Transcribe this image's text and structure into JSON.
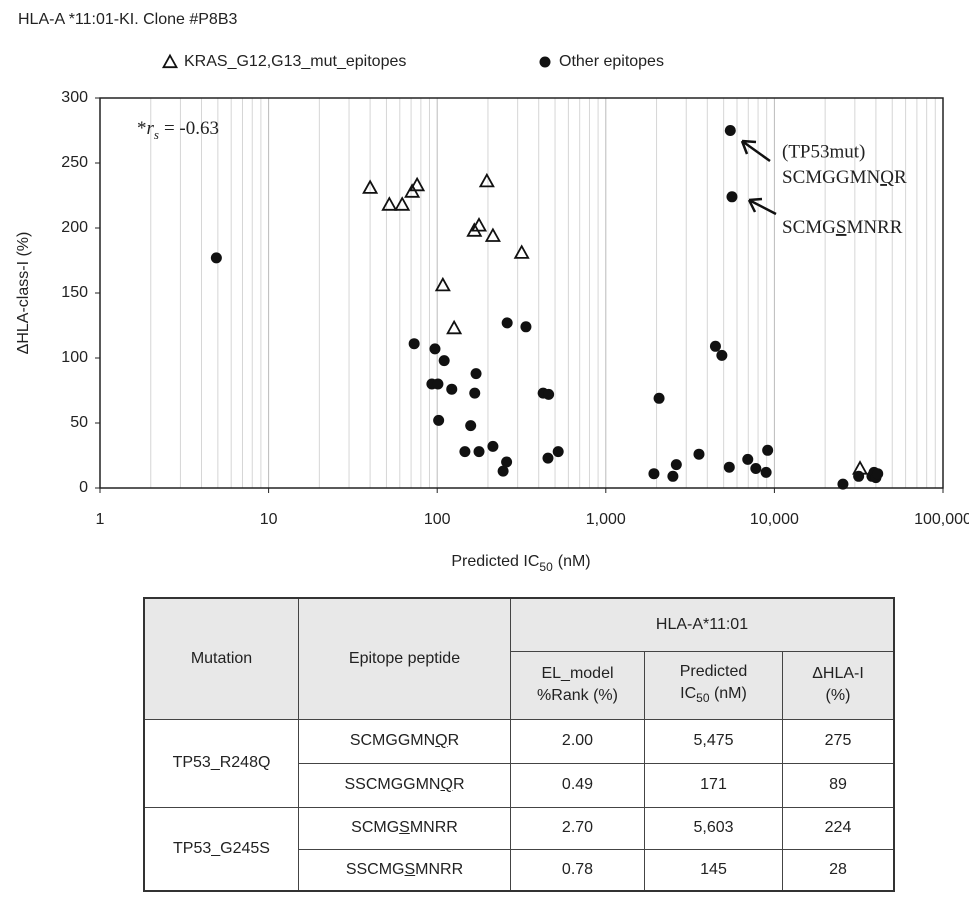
{
  "chart_data": {
    "type": "scatter",
    "title": "HLA-A *11:01-KI. Clone #P8B3",
    "x_label": {
      "main": "Predicted IC",
      "sub": "50",
      "rest": "(nM)"
    },
    "y_label": "ΔHLA-class-I (%)",
    "xlim": [
      1,
      100000
    ],
    "ylim": [
      0,
      300
    ],
    "xlog": true,
    "grid": true,
    "minor_grid": true,
    "legend": "top",
    "xticks": [
      1,
      10,
      100,
      {
        "value": 1000,
        "label": "1,000"
      },
      {
        "value": 10000,
        "label": "10,000"
      },
      {
        "value": 100000,
        "label": "100,000"
      }
    ],
    "yticks": [
      0,
      50,
      100,
      150,
      200,
      250,
      300
    ],
    "annotation_rs": {
      "prefix": "*",
      "symbol": "r",
      "sub": "s",
      "text": "= -0.63"
    },
    "annotation_tp53": "(TP53mut)",
    "annotation_peptide1": {
      "before": "SCMGGMN",
      "mut": "Q",
      "after": "R"
    },
    "annotation_peptide2": {
      "before": "SCMG",
      "mut": "S",
      "after": "MNRR"
    },
    "series": [
      {
        "name": "KRAS_G12,G13_mut_epitopes",
        "marker": "triangle",
        "color": "#111111",
        "x": [
          40,
          52,
          62,
          71,
          76,
          197,
          177,
          166,
          214,
          317,
          108,
          126,
          32200
        ],
        "values": [
          231,
          218,
          218,
          228,
          233,
          236,
          202,
          198,
          194,
          181,
          156,
          123,
          15
        ]
      },
      {
        "name": "Other epitopes",
        "marker": "circle",
        "color": "#111111",
        "x": [
          4.9,
          73,
          97,
          110,
          93,
          101,
          122,
          170,
          167,
          102,
          158,
          146,
          177,
          214,
          246,
          258,
          260,
          336,
          425,
          458,
          454,
          522,
          1930,
          2070,
          2500,
          2620,
          3570,
          4470,
          4880,
          5475,
          5603,
          5400,
          6950,
          7760,
          8930,
          9120,
          25500,
          31600,
          37900,
          39000,
          40000,
          41000
        ],
        "values": [
          177,
          111,
          107,
          98,
          80,
          80,
          76,
          88,
          73,
          52,
          48,
          28,
          28,
          32,
          13,
          20,
          127,
          124,
          73,
          72,
          23,
          28,
          11,
          69,
          9,
          18,
          26,
          109,
          102,
          275,
          224,
          16,
          22,
          15,
          12,
          29,
          3,
          9,
          9,
          12,
          8,
          11
        ]
      }
    ]
  },
  "table": {
    "header": {
      "mutation": "Mutation",
      "peptide": "Epitope peptide",
      "group": "HLA-A*11:01",
      "rank": [
        "EL_model",
        "%Rank (%)"
      ],
      "ic50": {
        "line1": "Predicted",
        "main": "IC",
        "sub": "50",
        "rest": "(nM)"
      },
      "dhla": [
        "ΔHLA-I",
        "(%)"
      ]
    },
    "groups": [
      {
        "mutation": "TP53_R248Q",
        "rows": [
          {
            "peptide": {
              "before": "SCMGGMN",
              "mut": "Q",
              "after": "R"
            },
            "rank": "2.00",
            "ic50": "5,475",
            "dhla": "275"
          },
          {
            "peptide": {
              "before": "SSCMGGMN",
              "mut": "Q",
              "after": "R"
            },
            "rank": "0.49",
            "ic50": "171",
            "dhla": "89"
          }
        ]
      },
      {
        "mutation": "TP53_G245S",
        "rows": [
          {
            "peptide": {
              "before": "SCMG",
              "mut": "S",
              "after": "MNRR"
            },
            "rank": "2.70",
            "ic50": "5,603",
            "dhla": "224"
          },
          {
            "peptide": {
              "before": "SSCMG",
              "mut": "S",
              "after": "MNRR"
            },
            "rank": "0.78",
            "ic50": "145",
            "dhla": "28"
          }
        ]
      }
    ]
  }
}
